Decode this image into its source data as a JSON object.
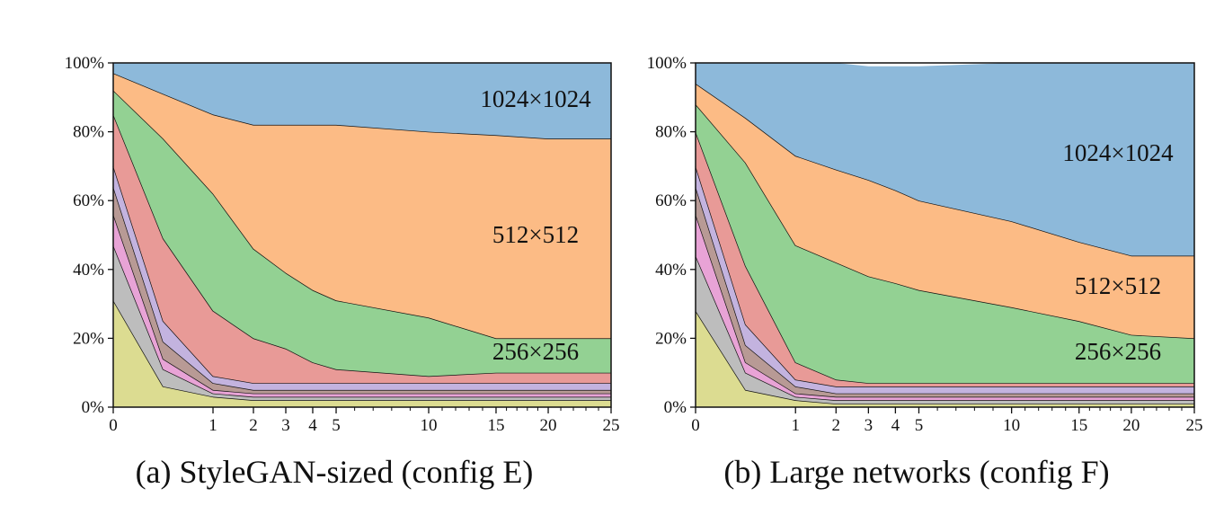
{
  "chart_data": [
    {
      "type": "area",
      "caption": "(a) StyleGAN-sized (config E)",
      "stacked": true,
      "x": [
        0,
        0.5,
        1,
        2,
        3,
        4,
        5,
        10,
        15,
        20,
        25
      ],
      "x_ticks": [
        "0",
        "1",
        "2",
        "3",
        "4",
        "5",
        "10",
        "15",
        "20",
        "25"
      ],
      "y_ticks": [
        "0%",
        "20%",
        "40%",
        "60%",
        "80%",
        "100%"
      ],
      "ylim": [
        0,
        100
      ],
      "series": [
        {
          "color": "#dcdc91",
          "values": [
            31,
            6,
            3,
            2,
            2,
            2,
            2,
            2,
            2,
            2,
            2
          ]
        },
        {
          "color": "#bdbdbd",
          "values": [
            16,
            5,
            1,
            1,
            1,
            1,
            1,
            1,
            1,
            1,
            1
          ]
        },
        {
          "color": "#e8a3d6",
          "values": [
            9,
            3,
            1,
            1,
            1,
            1,
            1,
            1,
            1,
            1,
            1
          ]
        },
        {
          "color": "#b89a95",
          "values": [
            8,
            5,
            2,
            1,
            1,
            1,
            1,
            1,
            1,
            1,
            1
          ]
        },
        {
          "color": "#c3b3df",
          "values": [
            6,
            6,
            2,
            2,
            2,
            2,
            2,
            2,
            2,
            2,
            2
          ]
        },
        {
          "color": "#e89a97",
          "values": [
            15,
            24,
            19,
            13,
            10,
            6,
            4,
            2,
            3,
            3,
            3
          ]
        },
        {
          "color": "#93d193",
          "values": [
            7,
            29,
            34,
            26,
            22,
            21,
            20,
            17,
            10,
            10,
            10
          ]
        },
        {
          "color": "#fcbb85",
          "values": [
            5,
            13,
            23,
            36,
            43,
            48,
            51,
            54,
            59,
            58,
            58
          ]
        },
        {
          "color": "#8db9da",
          "values": [
            3,
            9,
            15,
            18,
            18,
            18,
            18,
            20,
            21,
            22,
            22
          ],
          "name": "1024×1024"
        }
      ],
      "band_labels": [
        "1024×1024",
        "512×512",
        "256×256"
      ]
    },
    {
      "type": "area",
      "caption": "(b) Large networks (config F)",
      "stacked": true,
      "x": [
        0,
        0.5,
        1,
        2,
        3,
        4,
        5,
        10,
        15,
        20,
        25
      ],
      "x_ticks": [
        "0",
        "1",
        "2",
        "3",
        "4",
        "5",
        "10",
        "15",
        "20",
        "25"
      ],
      "y_ticks": [
        "0%",
        "20%",
        "40%",
        "60%",
        "80%",
        "100%"
      ],
      "ylim": [
        0,
        100
      ],
      "series": [
        {
          "color": "#dcdc91",
          "values": [
            28,
            5,
            2,
            1,
            1,
            1,
            1,
            1,
            1,
            1,
            1
          ]
        },
        {
          "color": "#bdbdbd",
          "values": [
            16,
            5,
            1,
            1,
            1,
            1,
            1,
            1,
            1,
            1,
            1
          ]
        },
        {
          "color": "#e8a3d6",
          "values": [
            12,
            3,
            1,
            1,
            1,
            1,
            1,
            1,
            1,
            1,
            1
          ]
        },
        {
          "color": "#b89a95",
          "values": [
            8,
            5,
            2,
            1,
            1,
            1,
            1,
            1,
            1,
            1,
            1
          ]
        },
        {
          "color": "#c3b3df",
          "values": [
            6,
            6,
            2,
            2,
            2,
            2,
            2,
            2,
            2,
            2,
            2
          ]
        },
        {
          "color": "#e89a97",
          "values": [
            10,
            17,
            5,
            2,
            1,
            1,
            1,
            1,
            1,
            1,
            1
          ]
        },
        {
          "color": "#93d193",
          "values": [
            8,
            30,
            34,
            34,
            31,
            29,
            27,
            22,
            18,
            14,
            13
          ]
        },
        {
          "color": "#fcbb85",
          "values": [
            6,
            13,
            26,
            27,
            28,
            27,
            26,
            25,
            23,
            23,
            24
          ]
        },
        {
          "color": "#8db9da",
          "values": [
            6,
            16,
            27,
            31,
            33,
            36,
            39,
            46,
            52,
            56,
            56
          ],
          "name": "1024×1024"
        }
      ],
      "band_labels": [
        "1024×1024",
        "512×512",
        "256×256"
      ]
    }
  ]
}
